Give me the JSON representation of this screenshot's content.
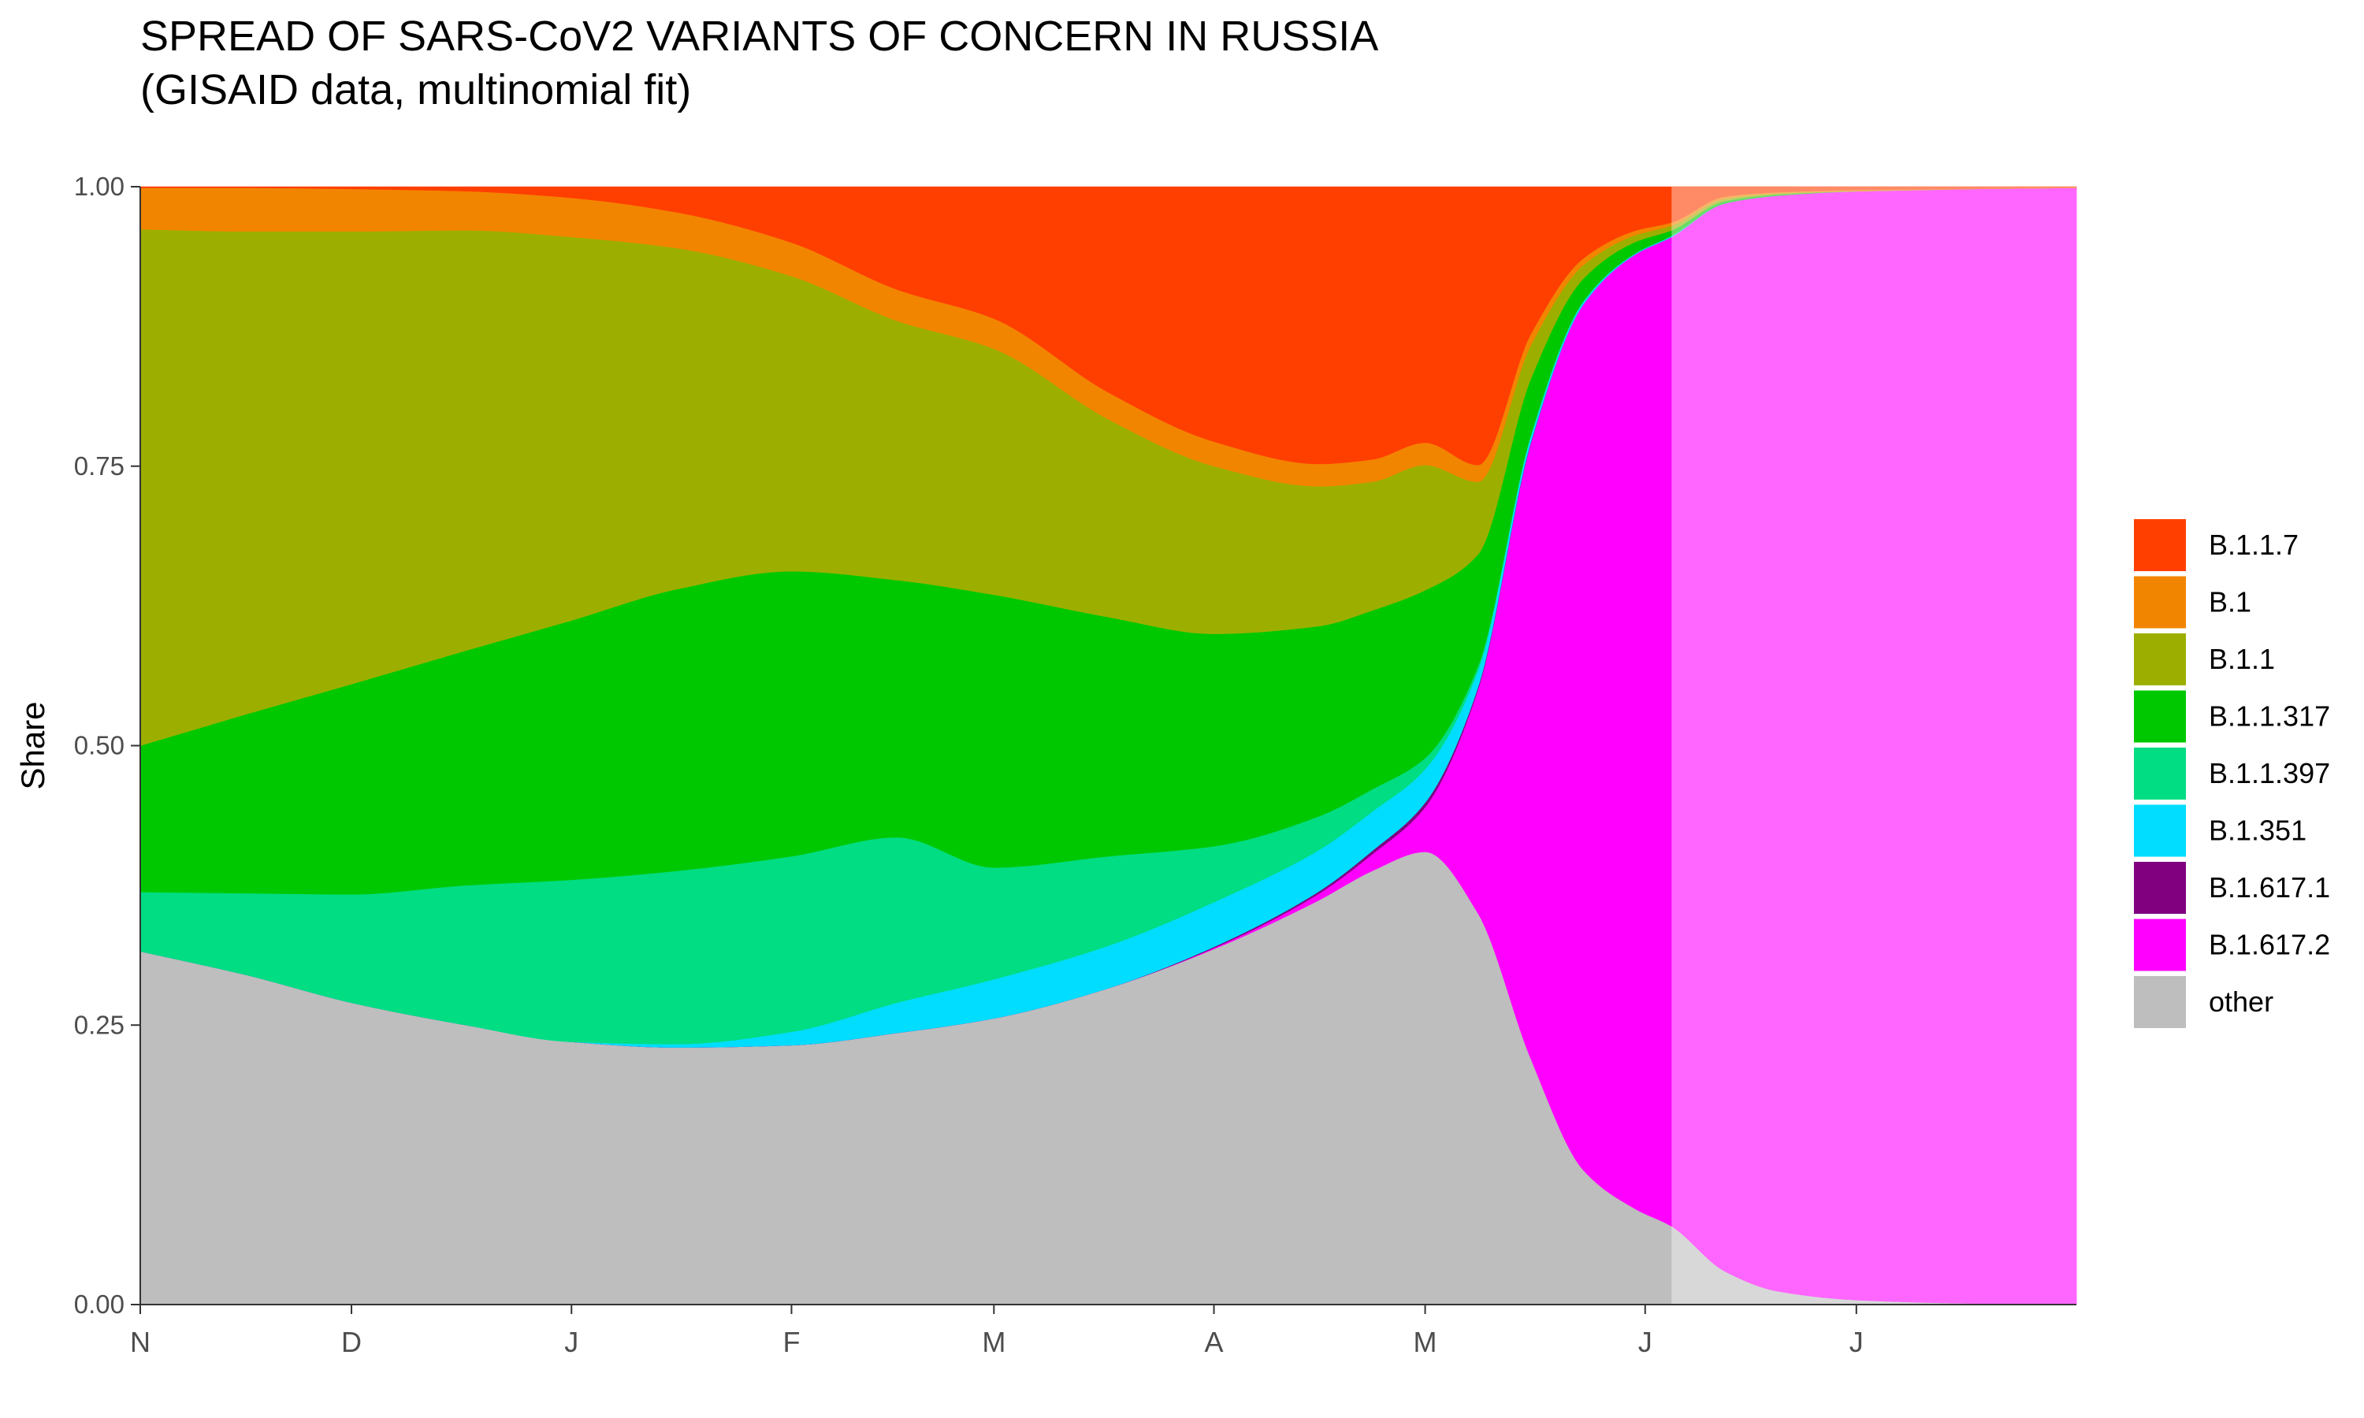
{
  "title": {
    "line1": "SPREAD OF SARS-CoV2 VARIANTS OF CONCERN IN RUSSIA",
    "line2": "(GISAID data, multinomial fit)"
  },
  "chart_data": {
    "type": "area",
    "stacked": true,
    "ylabel": "Share",
    "xlabel": "",
    "ylim": [
      0,
      1
    ],
    "xlim": [
      0,
      220
    ],
    "y_ticks": [
      "0.00",
      "0.25",
      "0.50",
      "0.75",
      "1.00"
    ],
    "x_ticks": [
      {
        "label": "N",
        "x": 0
      },
      {
        "label": "D",
        "x": 24
      },
      {
        "label": "J",
        "x": 49
      },
      {
        "label": "F",
        "x": 74
      },
      {
        "label": "M",
        "x": 97
      },
      {
        "label": "A",
        "x": 122
      },
      {
        "label": "M",
        "x": 146
      },
      {
        "label": "J",
        "x": 171
      },
      {
        "label": "J",
        "x": 195
      }
    ],
    "projection_start_x": 174,
    "grid": false,
    "legend_position": "right",
    "x": [
      0,
      12,
      24,
      37,
      49,
      61,
      74,
      86,
      97,
      110,
      122,
      134,
      140,
      146,
      152,
      158,
      164,
      170,
      174,
      180,
      186,
      195,
      208,
      220
    ],
    "series": [
      {
        "name": "other",
        "color": "#BEBEBE",
        "values": [
          0.316,
          0.295,
          0.27,
          0.25,
          0.235,
          0.23,
          0.232,
          0.243,
          0.256,
          0.283,
          0.318,
          0.362,
          0.388,
          0.405,
          0.35,
          0.22,
          0.12,
          0.085,
          0.07,
          0.03,
          0.012,
          0.004,
          0.001,
          0.0
        ]
      },
      {
        "name": "B.1.617.2",
        "color": "#FF00FF",
        "values": [
          0,
          0,
          0,
          0,
          0,
          0,
          0,
          0,
          0,
          0,
          0.001,
          0.006,
          0.015,
          0.04,
          0.2,
          0.55,
          0.775,
          0.855,
          0.885,
          0.955,
          0.98,
          0.992,
          0.997,
          0.999
        ]
      },
      {
        "name": "B.1.617.1",
        "color": "#800080",
        "values": [
          0,
          0,
          0,
          0,
          0,
          0,
          0,
          0,
          0,
          0,
          0.001,
          0.002,
          0.003,
          0.004,
          0.002,
          0.001,
          0.0,
          0.0,
          0.0,
          0.0,
          0.0,
          0.0,
          0.0,
          0.0
        ]
      },
      {
        "name": "B.1.351",
        "color": "#00DDFF",
        "values": [
          0,
          0,
          0,
          0,
          0,
          0.003,
          0.012,
          0.027,
          0.035,
          0.038,
          0.04,
          0.037,
          0.035,
          0.03,
          0.015,
          0.005,
          0.002,
          0.001,
          0.001,
          0.0,
          0.0,
          0.0,
          0.0,
          0.0
        ]
      },
      {
        "name": "B.1.1.397",
        "color": "#00DD83",
        "values": [
          0.053,
          0.073,
          0.097,
          0.125,
          0.145,
          0.155,
          0.157,
          0.148,
          0.1,
          0.08,
          0.05,
          0.03,
          0.02,
          0.01,
          0.004,
          0.002,
          0.001,
          0.0,
          0.0,
          0.0,
          0.0,
          0.0,
          0.0,
          0.0
        ]
      },
      {
        "name": "B.1.1.317",
        "color": "#00C800",
        "values": [
          0.131,
          0.16,
          0.188,
          0.21,
          0.232,
          0.252,
          0.255,
          0.23,
          0.244,
          0.214,
          0.19,
          0.17,
          0.16,
          0.15,
          0.1,
          0.05,
          0.02,
          0.01,
          0.005,
          0.002,
          0.001,
          0.0,
          0.0,
          0.0
        ]
      },
      {
        "name": "B.1.1",
        "color": "#9CAF00",
        "values": [
          0.462,
          0.432,
          0.405,
          0.376,
          0.343,
          0.305,
          0.264,
          0.232,
          0.22,
          0.177,
          0.15,
          0.125,
          0.115,
          0.112,
          0.065,
          0.03,
          0.012,
          0.006,
          0.004,
          0.002,
          0.001,
          0.0,
          0.0,
          0.0
        ]
      },
      {
        "name": "B.1",
        "color": "#F28500",
        "values": [
          0.037,
          0.039,
          0.038,
          0.035,
          0.035,
          0.032,
          0.03,
          0.028,
          0.027,
          0.024,
          0.022,
          0.02,
          0.02,
          0.02,
          0.015,
          0.01,
          0.006,
          0.004,
          0.003,
          0.002,
          0.001,
          0.001,
          0.0,
          0.0
        ]
      },
      {
        "name": "B.1.1.7",
        "color": "#FF3F00",
        "values": [
          0.001,
          0.001,
          0.002,
          0.004,
          0.01,
          0.023,
          0.05,
          0.092,
          0.118,
          0.184,
          0.228,
          0.248,
          0.244,
          0.229,
          0.249,
          0.132,
          0.064,
          0.039,
          0.032,
          0.009,
          0.005,
          0.003,
          0.002,
          0.001
        ]
      }
    ],
    "legend_order": [
      "B.1.1.7",
      "B.1",
      "B.1.1",
      "B.1.1.317",
      "B.1.1.397",
      "B.1.351",
      "B.1.617.1",
      "B.1.617.2",
      "other"
    ]
  }
}
